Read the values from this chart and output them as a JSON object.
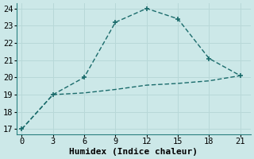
{
  "line1_x": [
    0,
    3,
    6,
    9,
    12,
    15,
    18,
    21
  ],
  "line1_y": [
    17,
    19,
    20,
    23.2,
    24.0,
    23.4,
    21.1,
    20.1
  ],
  "line2_x": [
    0,
    3,
    6,
    9,
    12,
    15,
    18,
    21
  ],
  "line2_y": [
    17,
    19,
    19.1,
    19.3,
    19.55,
    19.65,
    19.8,
    20.1
  ],
  "line_color": "#1a6b6b",
  "bg_color": "#cce8e8",
  "xlabel": "Humidex (Indice chaleur)",
  "xlim": [
    -0.5,
    22
  ],
  "ylim": [
    16.7,
    24.3
  ],
  "xticks": [
    0,
    3,
    6,
    9,
    12,
    15,
    18,
    21
  ],
  "yticks": [
    17,
    18,
    19,
    20,
    21,
    22,
    23,
    24
  ],
  "xlabel_fontsize": 8,
  "tick_fontsize": 7.5,
  "grid_color": "#b8d8d8",
  "marker_style": "+",
  "marker_size": 5,
  "linewidth": 1.0
}
